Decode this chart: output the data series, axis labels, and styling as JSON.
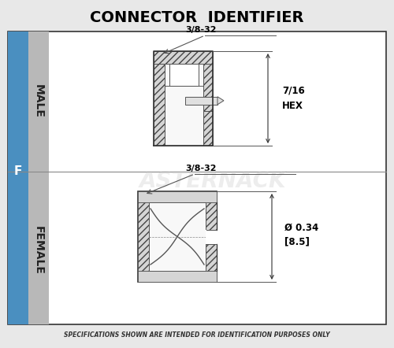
{
  "title": "CONNECTOR  IDENTIFIER",
  "bg_color": "#e8e8e8",
  "panel_bg": "#ffffff",
  "blue_strip_color": "#4a8fc0",
  "gray_strip_color": "#b8b8b8",
  "label_male": "MALE",
  "label_female": "FEMALE",
  "label_f": "F",
  "dim_label_male_top": "3/8-32",
  "dim_label_male_right1": "7/16",
  "dim_label_male_right2": "HEX",
  "dim_label_female_top": "3/8-32",
  "dim_label_female_right1": "Ø 0.34",
  "dim_label_female_right2": "[8.5]",
  "footer": "SPECIFICATIONS SHOWN ARE INTENDED FOR IDENTIFICATION PURPOSES ONLY",
  "watermark": "ASTERNACK",
  "watermark_color": "#cccccc",
  "watermark_alpha": 0.35,
  "hatch_color": "#d0d0d0",
  "line_color": "#333333"
}
